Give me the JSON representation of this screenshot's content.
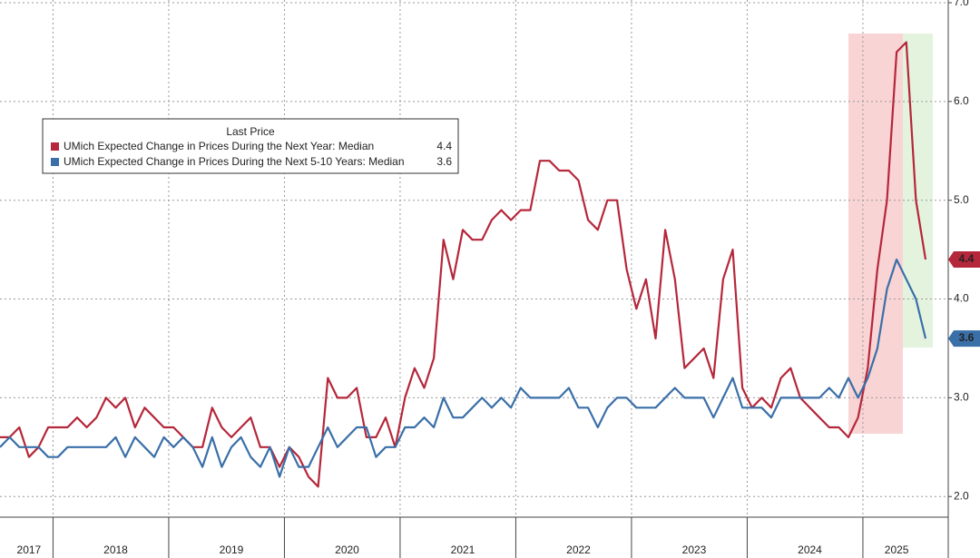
{
  "chart_data": {
    "type": "line",
    "categories": [
      null,
      null,
      null,
      "2017",
      null,
      null,
      null,
      null,
      null,
      null,
      null,
      null,
      "2018",
      null,
      null,
      null,
      null,
      null,
      null,
      null,
      null,
      null,
      null,
      null,
      "2019",
      null,
      null,
      null,
      null,
      null,
      null,
      null,
      null,
      null,
      null,
      null,
      "2020",
      null,
      null,
      null,
      null,
      null,
      null,
      null,
      null,
      null,
      null,
      null,
      "2021",
      null,
      null,
      null,
      null,
      null,
      null,
      null,
      null,
      null,
      null,
      null,
      "2022",
      null,
      null,
      null,
      null,
      null,
      null,
      null,
      null,
      null,
      null,
      null,
      "2023",
      null,
      null,
      null,
      null,
      null,
      null,
      null,
      null,
      null,
      null,
      null,
      "2024",
      null,
      null,
      null,
      null,
      null,
      null,
      null,
      null,
      "2025",
      null,
      null,
      null
    ],
    "legend_title": "Last Price",
    "series": [
      {
        "name": "UMich Expected Change in Prices During the Next Year: Median",
        "color": "#b5273a",
        "values": [
          2.6,
          2.6,
          2.7,
          2.4,
          2.5,
          2.7,
          2.7,
          2.7,
          2.8,
          2.7,
          2.8,
          3.0,
          2.9,
          3.0,
          2.7,
          2.9,
          2.8,
          2.7,
          2.7,
          2.6,
          2.5,
          2.5,
          2.9,
          2.7,
          2.6,
          2.7,
          2.8,
          2.5,
          2.5,
          2.3,
          2.5,
          2.4,
          2.2,
          2.1,
          3.2,
          3.0,
          3.0,
          3.1,
          2.6,
          2.6,
          2.8,
          2.5,
          3.0,
          3.3,
          3.1,
          3.4,
          4.6,
          4.2,
          4.7,
          4.6,
          4.6,
          4.8,
          4.9,
          4.8,
          4.9,
          4.9,
          5.4,
          5.4,
          5.3,
          5.3,
          5.2,
          4.8,
          4.7,
          5.0,
          5.0,
          4.3,
          3.9,
          4.2,
          3.6,
          4.7,
          4.2,
          3.3,
          3.4,
          3.5,
          3.2,
          4.2,
          4.5,
          3.1,
          2.9,
          3.0,
          2.9,
          3.2,
          3.3,
          3.0,
          2.9,
          2.8,
          2.7,
          2.7,
          2.6,
          2.8,
          3.3,
          4.3,
          5.0,
          6.5,
          6.6,
          5.0,
          4.4
        ]
      },
      {
        "name": "UMich Expected Change in Prices During the Next 5-10 Years: Median",
        "color": "#3a6fa8",
        "values": [
          2.5,
          2.6,
          2.5,
          2.5,
          2.5,
          2.4,
          2.4,
          2.5,
          2.5,
          2.5,
          2.5,
          2.5,
          2.6,
          2.4,
          2.6,
          2.5,
          2.4,
          2.6,
          2.5,
          2.6,
          2.5,
          2.3,
          2.6,
          2.3,
          2.5,
          2.6,
          2.4,
          2.3,
          2.5,
          2.2,
          2.5,
          2.3,
          2.3,
          2.5,
          2.7,
          2.5,
          2.6,
          2.7,
          2.7,
          2.4,
          2.5,
          2.5,
          2.7,
          2.7,
          2.8,
          2.7,
          3.0,
          2.8,
          2.8,
          2.9,
          3.0,
          2.9,
          3.0,
          2.9,
          3.1,
          3.0,
          3.0,
          3.0,
          3.0,
          3.1,
          2.9,
          2.9,
          2.7,
          2.9,
          3.0,
          3.0,
          2.9,
          2.9,
          2.9,
          3.0,
          3.1,
          3.0,
          3.0,
          3.0,
          2.8,
          3.0,
          3.2,
          2.9,
          2.9,
          2.9,
          2.8,
          3.0,
          3.0,
          3.0,
          3.0,
          3.0,
          3.1,
          3.0,
          3.2,
          3.0,
          3.2,
          3.5,
          4.1,
          4.4,
          4.2,
          4.0,
          3.6
        ]
      }
    ],
    "ylim": [
      1.8,
      7.0
    ],
    "yticks": [
      {
        "value": 2,
        "label": "2.0"
      },
      {
        "value": 3,
        "label": "3.0"
      },
      {
        "value": 4,
        "label": "4.0"
      },
      {
        "value": 5,
        "label": "5.0"
      },
      {
        "value": 6,
        "label": "6.0"
      },
      {
        "value": 7,
        "label": "7.0"
      }
    ],
    "grid": true
  }
}
